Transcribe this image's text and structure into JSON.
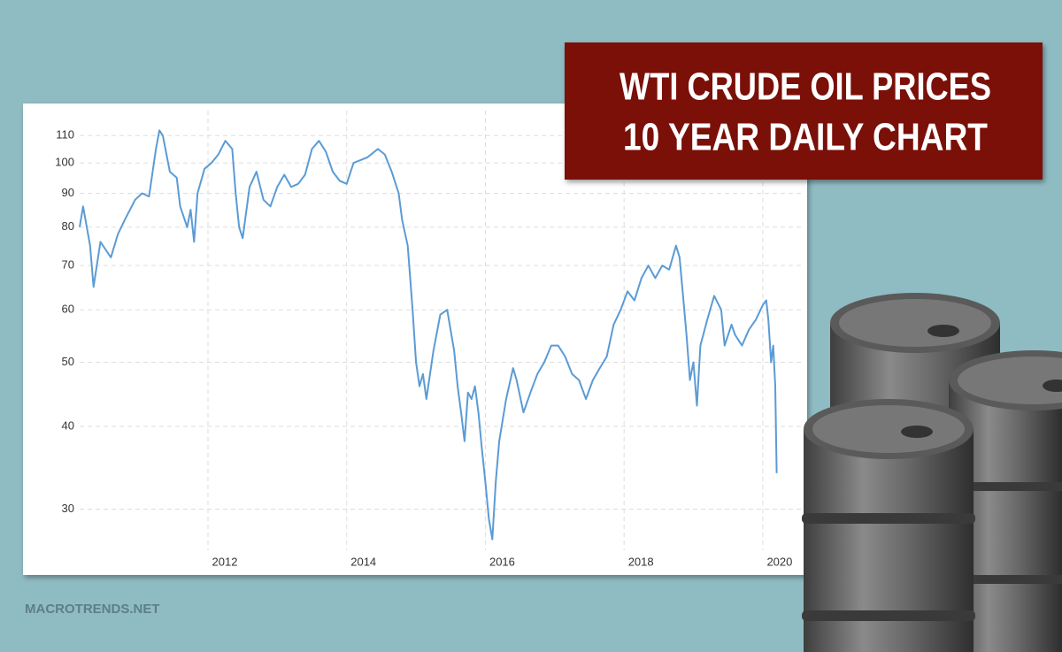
{
  "chart_data": {
    "type": "line",
    "title": "WTI CRUDE OIL PRICES",
    "subtitle": "10 YEAR DAILY CHART",
    "source": "MACROTRENDS.NET",
    "color": "#5b9bd5",
    "ylog": true,
    "grid": true,
    "xlim": [
      2010.15,
      2020.55
    ],
    "xticks": [
      2012,
      2014,
      2016,
      2018,
      2020
    ],
    "ylim": [
      26,
      120
    ],
    "yticks": [
      30,
      40,
      50,
      60,
      70,
      80,
      90,
      100,
      110
    ],
    "x": [
      2010.15,
      2010.2,
      2010.3,
      2010.35,
      2010.45,
      2010.6,
      2010.7,
      2010.8,
      2010.95,
      2011.05,
      2011.15,
      2011.25,
      2011.3,
      2011.35,
      2011.45,
      2011.55,
      2011.6,
      2011.7,
      2011.75,
      2011.8,
      2011.85,
      2011.95,
      2012.05,
      2012.15,
      2012.25,
      2012.35,
      2012.4,
      2012.45,
      2012.5,
      2012.6,
      2012.7,
      2012.8,
      2012.9,
      2013.0,
      2013.1,
      2013.2,
      2013.3,
      2013.4,
      2013.5,
      2013.6,
      2013.7,
      2013.8,
      2013.9,
      2014.0,
      2014.1,
      2014.3,
      2014.45,
      2014.55,
      2014.65,
      2014.75,
      2014.8,
      2014.88,
      2014.95,
      2015.0,
      2015.05,
      2015.1,
      2015.15,
      2015.25,
      2015.35,
      2015.45,
      2015.55,
      2015.6,
      2015.65,
      2015.7,
      2015.75,
      2015.8,
      2015.85,
      2015.9,
      2015.95,
      2016.0,
      2016.05,
      2016.1,
      2016.15,
      2016.2,
      2016.3,
      2016.4,
      2016.45,
      2016.55,
      2016.65,
      2016.75,
      2016.85,
      2016.95,
      2017.05,
      2017.15,
      2017.25,
      2017.35,
      2017.45,
      2017.55,
      2017.65,
      2017.75,
      2017.85,
      2017.95,
      2018.05,
      2018.15,
      2018.25,
      2018.35,
      2018.45,
      2018.55,
      2018.65,
      2018.75,
      2018.8,
      2018.85,
      2018.9,
      2018.95,
      2019.0,
      2019.05,
      2019.1,
      2019.2,
      2019.3,
      2019.4,
      2019.45,
      2019.55,
      2019.6,
      2019.7,
      2019.8,
      2019.9,
      2020.0,
      2020.05,
      2020.08,
      2020.12,
      2020.15,
      2020.18,
      2020.2
    ],
    "values": [
      80,
      86,
      75,
      65,
      76,
      72,
      78,
      82,
      88,
      90,
      89,
      105,
      112,
      110,
      97,
      95,
      86,
      80,
      85,
      76,
      90,
      98,
      100,
      103,
      108,
      105,
      90,
      80,
      77,
      92,
      97,
      88,
      86,
      92,
      96,
      92,
      93,
      96,
      105,
      108,
      104,
      97,
      94,
      93,
      100,
      102,
      105,
      103,
      97,
      90,
      82,
      75,
      60,
      50,
      46,
      48,
      44,
      52,
      59,
      60,
      52,
      46,
      42,
      38,
      45,
      44,
      46,
      42,
      37,
      33,
      29,
      27,
      33,
      38,
      44,
      49,
      47,
      42,
      45,
      48,
      50,
      53,
      53,
      51,
      48,
      47,
      44,
      47,
      49,
      51,
      57,
      60,
      64,
      62,
      67,
      70,
      67,
      70,
      69,
      75,
      72,
      63,
      55,
      47,
      50,
      43,
      53,
      58,
      63,
      60,
      53,
      57,
      55,
      53,
      56,
      58,
      61,
      62,
      58,
      50,
      53,
      46,
      34
    ]
  }
}
